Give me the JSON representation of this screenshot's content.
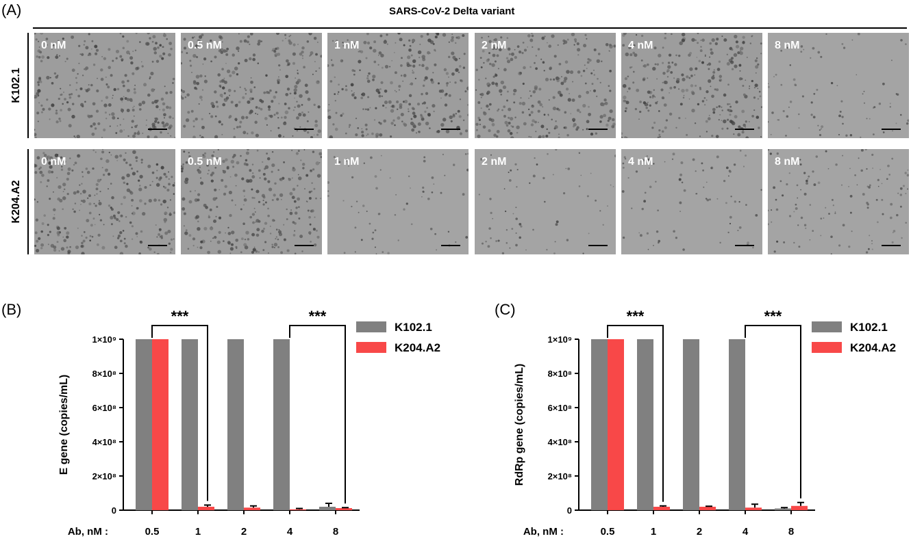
{
  "panel_a": {
    "letter": "(A)",
    "title": "SARS-CoV-2 Delta variant",
    "rows": [
      {
        "label": "K102.1",
        "doses": [
          "0 nM",
          "0.5 nM",
          "1 nM",
          "2 nM",
          "4 nM",
          "8 nM"
        ],
        "cell_density": [
          1,
          1,
          1,
          1,
          1,
          0.2
        ]
      },
      {
        "label": "K204.A2",
        "doses": [
          "0 nM",
          "0.5 nM",
          "1 nM",
          "2 nM",
          "4 nM",
          "8 nM"
        ],
        "cell_density": [
          1,
          1,
          0.15,
          0.15,
          0.2,
          0.35
        ]
      }
    ]
  },
  "panel_b": {
    "letter": "(B)"
  },
  "panel_c": {
    "letter": "(C)"
  },
  "colors": {
    "series1": "#808080",
    "series2": "#f84848"
  },
  "chart_data": [
    {
      "type": "bar",
      "panel": "B",
      "categories": [
        "0.5",
        "1",
        "2",
        "4",
        "8"
      ],
      "x_prefix": "Ab, nM :",
      "ylabel": "E gene (copies/mL)",
      "ylim": [
        0,
        1000000000
      ],
      "yticks": [
        "0",
        "2×10⁸",
        "4×10⁸",
        "6×10⁸",
        "8×10⁸",
        "1×10⁹"
      ],
      "series": [
        {
          "name": "K102.1",
          "values": [
            1000000000,
            1000000000,
            1000000000,
            1000000000,
            20000000
          ],
          "errors": [
            0,
            0,
            0,
            0,
            20000000
          ]
        },
        {
          "name": "K204.A2",
          "values": [
            1000000000,
            20000000,
            15000000,
            5000000,
            12000000
          ],
          "errors": [
            0,
            10000000,
            10000000,
            5000000,
            3000000
          ]
        }
      ],
      "annotations": [
        {
          "text": "***",
          "from": "0.5",
          "to": "1"
        },
        {
          "text": "***",
          "from": "4",
          "to": "8"
        }
      ],
      "legend": "top-right",
      "grid": false
    },
    {
      "type": "bar",
      "panel": "C",
      "categories": [
        "0.5",
        "1",
        "2",
        "4",
        "8"
      ],
      "x_prefix": "Ab, nM :",
      "ylabel": "RdRp gene (copies/mL)",
      "ylim": [
        0,
        1000000000
      ],
      "yticks": [
        "0",
        "2×10⁸",
        "4×10⁸",
        "6×10⁸",
        "8×10⁸",
        "1×10⁹"
      ],
      "series": [
        {
          "name": "K102.1",
          "values": [
            1000000000,
            1000000000,
            1000000000,
            1000000000,
            10000000
          ],
          "errors": [
            0,
            0,
            0,
            0,
            5000000
          ]
        },
        {
          "name": "K204.A2",
          "values": [
            1000000000,
            20000000,
            20000000,
            15000000,
            25000000
          ],
          "errors": [
            0,
            5000000,
            3000000,
            20000000,
            20000000
          ]
        }
      ],
      "annotations": [
        {
          "text": "***",
          "from": "0.5",
          "to": "1"
        },
        {
          "text": "***",
          "from": "4",
          "to": "8"
        }
      ],
      "legend": "top-right",
      "grid": false
    }
  ]
}
